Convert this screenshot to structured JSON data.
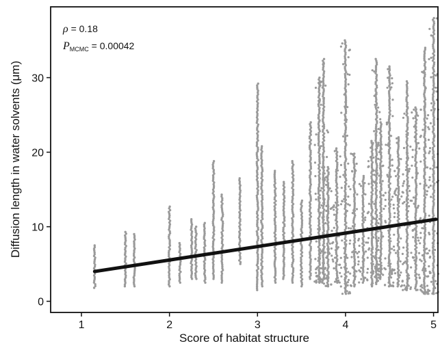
{
  "chart_data": {
    "type": "scatter",
    "title": "",
    "xlabel": "Score of habitat structure",
    "ylabel": "Diffusion length in water solvents (μm)",
    "xlim": [
      0.65,
      5.05
    ],
    "ylim": [
      -1.5,
      39.5
    ],
    "x_ticks": [
      "1",
      "2",
      "3",
      "4",
      "5"
    ],
    "y_ticks": [
      "0",
      "10",
      "20",
      "30"
    ],
    "grid": false,
    "annotation": {
      "rho_symbol": "ρ",
      "rho_text": " = 0.18",
      "p_symbol": "P",
      "p_subscript": "MCMC",
      "p_text": " = 0.00042"
    },
    "regression_line": {
      "x": [
        1.15,
        5.05
      ],
      "y": [
        4.0,
        11.0
      ],
      "color": "#111111"
    },
    "point_color": "#9a9a9a",
    "columns": [
      {
        "x": 1.15,
        "ymin": 1.8,
        "ymax": 7.5
      },
      {
        "x": 1.5,
        "ymin": 2.0,
        "ymax": 9.3
      },
      {
        "x": 1.6,
        "ymin": 2.0,
        "ymax": 9.0
      },
      {
        "x": 2.0,
        "ymin": 2.0,
        "ymax": 12.7
      },
      {
        "x": 2.12,
        "ymin": 2.5,
        "ymax": 7.8
      },
      {
        "x": 2.25,
        "ymin": 3.0,
        "ymax": 11.0
      },
      {
        "x": 2.3,
        "ymin": 3.0,
        "ymax": 10.0
      },
      {
        "x": 2.4,
        "ymin": 2.5,
        "ymax": 10.5
      },
      {
        "x": 2.5,
        "ymin": 3.0,
        "ymax": 18.8
      },
      {
        "x": 2.6,
        "ymin": 2.5,
        "ymax": 14.3
      },
      {
        "x": 2.8,
        "ymin": 5.0,
        "ymax": 16.5
      },
      {
        "x": 3.0,
        "ymin": 1.5,
        "ymax": 29.2
      },
      {
        "x": 3.05,
        "ymin": 2.0,
        "ymax": 20.8
      },
      {
        "x": 3.2,
        "ymin": 2.5,
        "ymax": 17.5
      },
      {
        "x": 3.3,
        "ymin": 3.0,
        "ymax": 16.0
      },
      {
        "x": 3.4,
        "ymin": 2.5,
        "ymax": 18.8
      },
      {
        "x": 3.5,
        "ymin": 2.0,
        "ymax": 13.5
      },
      {
        "x": 3.6,
        "ymin": 3.0,
        "ymax": 24.0
      },
      {
        "x": 3.7,
        "ymin": 2.5,
        "ymax": 30.0
      },
      {
        "x": 3.75,
        "ymin": 3.0,
        "ymax": 32.5
      },
      {
        "x": 3.8,
        "ymin": 2.0,
        "ymax": 18.0
      },
      {
        "x": 3.9,
        "ymin": 2.5,
        "ymax": 20.5
      },
      {
        "x": 4.0,
        "ymin": 1.0,
        "ymax": 35.0
      },
      {
        "x": 4.1,
        "ymin": 2.0,
        "ymax": 19.8
      },
      {
        "x": 4.2,
        "ymin": 2.5,
        "ymax": 16.8
      },
      {
        "x": 4.3,
        "ymin": 2.0,
        "ymax": 21.5
      },
      {
        "x": 4.35,
        "ymin": 2.5,
        "ymax": 32.5
      },
      {
        "x": 4.4,
        "ymin": 3.0,
        "ymax": 24.0
      },
      {
        "x": 4.5,
        "ymin": 2.0,
        "ymax": 31.5
      },
      {
        "x": 4.6,
        "ymin": 2.0,
        "ymax": 22.0
      },
      {
        "x": 4.7,
        "ymin": 1.5,
        "ymax": 29.5
      },
      {
        "x": 4.8,
        "ymin": 1.5,
        "ymax": 26.0
      },
      {
        "x": 4.9,
        "ymin": 1.0,
        "ymax": 34.0
      },
      {
        "x": 5.0,
        "ymin": 1.0,
        "ymax": 38.0
      }
    ]
  }
}
